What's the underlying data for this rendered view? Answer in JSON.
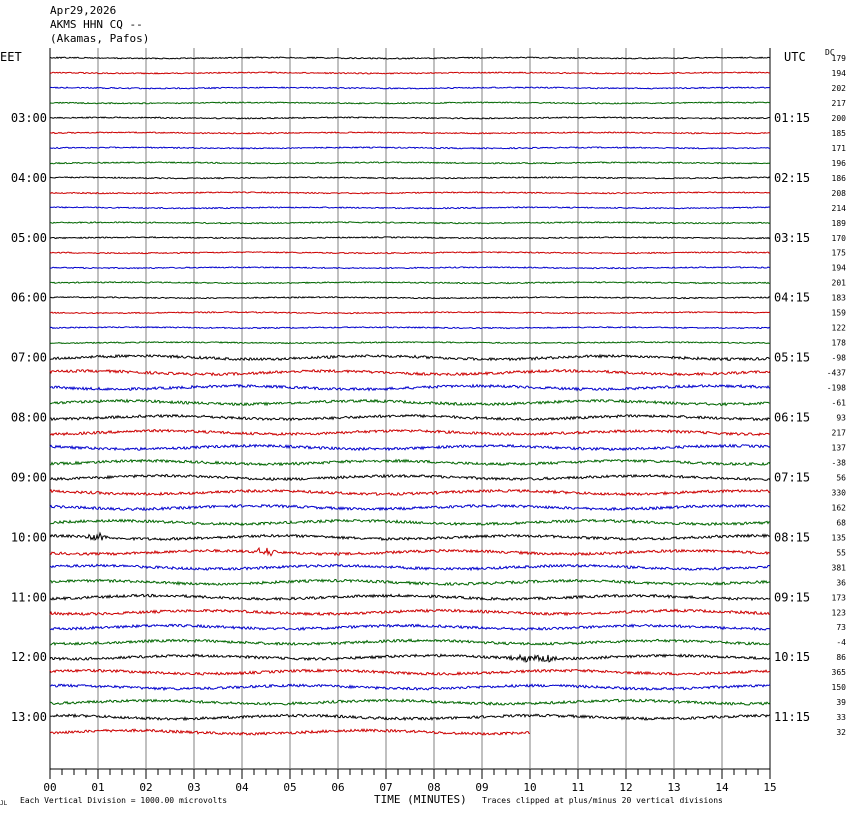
{
  "header": {
    "date": "Apr29,2026",
    "station": "AKMS HHN CQ --",
    "location": "(Akamas, Pafos)"
  },
  "left_tz": "EET",
  "right_tz": "UTC",
  "dc_label": "DC",
  "footer": {
    "scale_note": "Each Vertical Division = 1000.00 microvolts",
    "axis_title": "TIME (MINUTES)",
    "clip_note": "Traces clipped at plus/minus 20 vertical divisions",
    "corner_mark": "JL"
  },
  "colors": {
    "trace_cycle": [
      "#000000",
      "#cc0000",
      "#0000cc",
      "#006600"
    ],
    "grid": "#808080",
    "axis": "#000000"
  },
  "chart_data": {
    "type": "line",
    "title": "",
    "xlabel": "TIME (MINUTES)",
    "xlim": [
      0,
      15
    ],
    "x_tick_labels": [
      "00",
      "01",
      "02",
      "03",
      "04",
      "05",
      "06",
      "07",
      "08",
      "09",
      "10",
      "11",
      "12",
      "13",
      "14",
      "15"
    ],
    "left_hour_labels": [
      "03:00",
      "04:00",
      "05:00",
      "06:00",
      "07:00",
      "08:00",
      "09:00",
      "10:00",
      "11:00",
      "12:00",
      "13:00"
    ],
    "right_hour_labels": [
      "01:15",
      "02:15",
      "03:15",
      "04:15",
      "05:15",
      "06:15",
      "07:15",
      "08:15",
      "09:15",
      "10:15",
      "11:15"
    ],
    "dc_offsets": [
      179,
      194,
      202,
      217,
      200,
      185,
      171,
      196,
      186,
      208,
      214,
      189,
      170,
      175,
      194,
      201,
      183,
      159,
      122,
      178,
      -98,
      -437,
      -198,
      -61,
      93,
      217,
      137,
      -38,
      56,
      330,
      162,
      68,
      135,
      55,
      381,
      36,
      173,
      123,
      73,
      -4,
      86,
      365,
      150,
      39,
      33,
      32
    ],
    "last_trace_end_minute": 10,
    "noise_level": [
      1,
      1,
      1,
      1,
      1,
      1,
      1,
      1,
      1,
      1,
      1,
      1,
      1,
      1,
      1,
      1,
      1,
      1,
      1,
      1,
      2,
      2,
      2,
      2,
      2,
      2,
      2,
      2,
      2,
      2,
      2,
      2,
      2,
      2,
      2,
      2,
      2,
      2,
      2,
      2,
      2,
      2,
      2,
      2,
      2,
      2
    ],
    "events": [
      {
        "trace": 32,
        "minute_start": 0.7,
        "minute_end": 1.3
      },
      {
        "trace": 33,
        "minute_start": 4.2,
        "minute_end": 4.8
      },
      {
        "trace": 40,
        "minute_start": 9.5,
        "minute_end": 10.7
      }
    ]
  }
}
